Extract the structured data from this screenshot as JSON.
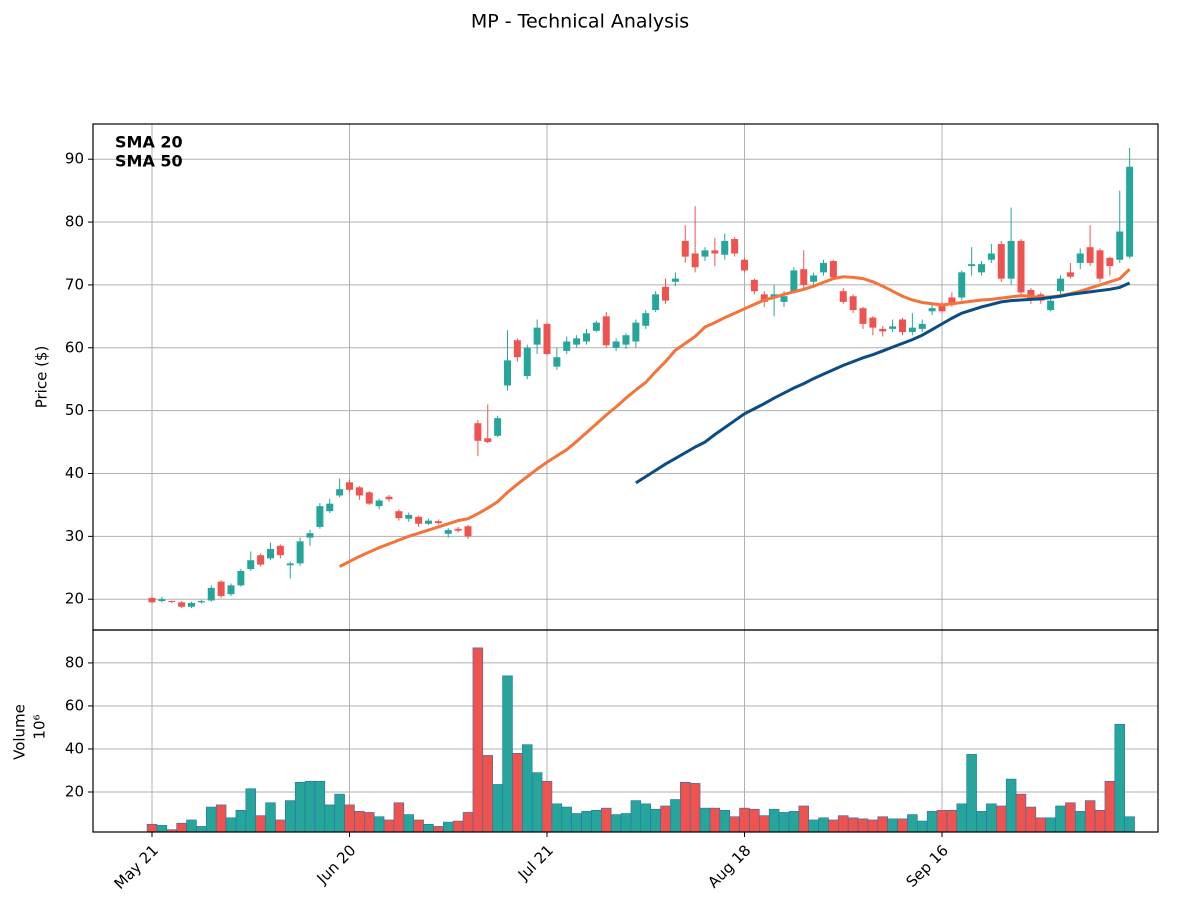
{
  "chart_data": [
    {
      "type": "candlestick",
      "title": "MP - Technical Analysis",
      "ylabel": "Price ($)",
      "up_color": "#26a69a",
      "down_color": "#ef5350",
      "open": [
        20.2,
        19.7,
        19.7,
        19.5,
        18.8,
        19.5,
        19.8,
        22.8,
        20.8,
        22.2,
        24.8,
        27,
        26.5,
        28.5,
        25.4,
        25.7,
        29.8,
        31.5,
        34,
        36.5,
        38.6,
        37.8,
        37,
        34.8,
        36.3,
        34,
        32.8,
        33.1,
        32,
        32.4,
        30.4,
        31.2,
        31.6,
        48,
        45.6,
        46,
        54,
        61.2,
        55.5,
        60.5,
        63.8,
        57,
        59.5,
        60.5,
        61,
        62.7,
        65,
        60,
        60.5,
        61,
        63.5,
        66,
        69.7,
        70.5,
        77,
        75,
        74.5,
        75.5,
        74.8,
        77.3,
        74,
        70.8,
        68.5,
        68,
        67.3,
        69,
        72.5,
        70.5,
        72,
        73.8,
        69,
        68.2,
        66.3,
        64.8,
        63,
        63,
        64.5,
        62.5,
        63,
        65.8,
        67,
        68,
        68,
        73,
        72,
        74,
        76.5,
        71,
        77,
        69.2,
        68.5,
        66,
        69,
        72,
        73.5,
        76,
        75.5,
        74.3,
        74,
        74.5
      ],
      "high": [
        20.5,
        20.4,
        19.8,
        19.7,
        19.6,
        19.9,
        22.2,
        23,
        22.5,
        24.8,
        27.6,
        27.3,
        29,
        28.7,
        26,
        29.8,
        31,
        35.3,
        36,
        39.2,
        39,
        38,
        37.2,
        36,
        36.6,
        34.3,
        33.8,
        33.3,
        32.8,
        32.7,
        31.3,
        31.5,
        31.8,
        48.5,
        51,
        49.2,
        62.8,
        61.5,
        60.5,
        64.5,
        64,
        60,
        61.8,
        62,
        63,
        64.3,
        65.7,
        61.5,
        62.3,
        64.5,
        66,
        69,
        71,
        72,
        79.5,
        82.5,
        76,
        77.5,
        78.2,
        77.6,
        74.3,
        71,
        69,
        70,
        69,
        72.8,
        75.5,
        72,
        74,
        74,
        69.5,
        68.5,
        66.5,
        65,
        63.5,
        64.5,
        64.8,
        65.5,
        64.5,
        66.8,
        67.3,
        68.8,
        72.3,
        76,
        73.8,
        76.5,
        77,
        82.3,
        77.3,
        69.5,
        68.8,
        68,
        71.5,
        73.5,
        75.8,
        79.5,
        75.8,
        74.5,
        85,
        91.8
      ],
      "low": [
        19.3,
        19.5,
        19.4,
        18.6,
        18.6,
        19.3,
        19.6,
        20.2,
        20.5,
        22,
        24.5,
        25.2,
        26.2,
        26.5,
        23.3,
        25.3,
        28.5,
        31.2,
        33.7,
        36.2,
        37,
        35.8,
        35,
        34.3,
        35.5,
        32.5,
        32.3,
        31.5,
        31.8,
        31.9,
        29.8,
        30.6,
        29.6,
        42.8,
        44.8,
        45.8,
        53.2,
        57.8,
        55,
        59,
        58.8,
        56.5,
        59,
        60,
        60.5,
        62.5,
        60,
        59.5,
        59.8,
        60,
        63,
        65.7,
        67,
        69.8,
        73.5,
        72,
        73.8,
        73,
        74,
        74.5,
        72,
        68.5,
        66.5,
        65,
        66.5,
        68.8,
        69.5,
        69.8,
        71.5,
        71,
        67,
        65.5,
        63,
        62,
        61.8,
        62.5,
        62,
        62,
        62.5,
        65.2,
        65.5,
        66.5,
        67.5,
        71.5,
        71.5,
        73.5,
        70.5,
        70,
        68,
        67,
        67,
        65.8,
        68.5,
        71,
        72.5,
        73,
        70.5,
        71.5,
        73.5,
        74.2
      ],
      "close": [
        19.5,
        20,
        19.6,
        18.8,
        19.4,
        19.7,
        21.8,
        20.5,
        22.2,
        24.5,
        26.2,
        25.5,
        28,
        27,
        25.7,
        29.2,
        30.5,
        34.8,
        35.2,
        37.5,
        37.4,
        36.5,
        35.2,
        35.7,
        35.9,
        32.9,
        33.4,
        32,
        32.5,
        32.1,
        31,
        30.9,
        30,
        45.2,
        45,
        48.8,
        58,
        58.5,
        60,
        63.2,
        59,
        58.5,
        61,
        61.5,
        62.3,
        64,
        60.4,
        61,
        62,
        64,
        65.5,
        68.5,
        67.5,
        71,
        74.5,
        72.8,
        75.5,
        75,
        77,
        75,
        72.3,
        69,
        67.3,
        68.5,
        68.2,
        72.3,
        70,
        71.5,
        73.5,
        71.2,
        67.3,
        66,
        63.8,
        63.2,
        62.6,
        63.4,
        62.5,
        63.2,
        63.8,
        66.3,
        65.8,
        66.8,
        72,
        73.3,
        73.3,
        75,
        71,
        77,
        68.8,
        67.8,
        67.5,
        67.5,
        71,
        71.3,
        75,
        73.5,
        71,
        73,
        78.5,
        88.8
      ],
      "series": [
        {
          "name": "SMA 20",
          "color": "#f4733a",
          "values": [
            null,
            null,
            null,
            null,
            null,
            null,
            null,
            null,
            null,
            null,
            null,
            null,
            null,
            null,
            null,
            null,
            null,
            null,
            null,
            25.2,
            26.0,
            26.8,
            27.5,
            28.2,
            28.8,
            29.4,
            30.0,
            30.5,
            31.0,
            31.5,
            32.0,
            32.5,
            32.8,
            33.6,
            34.5,
            35.5,
            37.0,
            38.3,
            39.5,
            40.7,
            41.8,
            42.8,
            43.8,
            45.1,
            46.5,
            47.9,
            49.3,
            50.6,
            52.0,
            53.3,
            54.5,
            56.2,
            57.8,
            59.6,
            60.7,
            61.8,
            63.3,
            64.0,
            64.8,
            65.5,
            66.2,
            66.9,
            67.6,
            68.0,
            68.5,
            68.9,
            69.3,
            69.8,
            70.4,
            71.0,
            71.3,
            71.2,
            71.0,
            70.5,
            69.8,
            69.0,
            68.2,
            67.6,
            67.2,
            67.0,
            66.8,
            67.0,
            67.2,
            67.4,
            67.6,
            67.7,
            67.9,
            68.1,
            68.3,
            68.2,
            68.0,
            68.1,
            68.3,
            68.6,
            69.0,
            69.5,
            70.0,
            70.5,
            71.0,
            72.5
          ]
        },
        {
          "name": "SMA 50",
          "color": "#0a4c86",
          "values": [
            null,
            null,
            null,
            null,
            null,
            null,
            null,
            null,
            null,
            null,
            null,
            null,
            null,
            null,
            null,
            null,
            null,
            null,
            null,
            null,
            null,
            null,
            null,
            null,
            null,
            null,
            null,
            null,
            null,
            null,
            null,
            null,
            null,
            null,
            null,
            null,
            null,
            null,
            null,
            null,
            null,
            null,
            null,
            null,
            null,
            null,
            null,
            null,
            null,
            38.5,
            39.5,
            40.5,
            41.5,
            42.4,
            43.3,
            44.2,
            45.0,
            46.2,
            47.3,
            48.4,
            49.5,
            50.3,
            51.1,
            52.0,
            52.8,
            53.6,
            54.3,
            55.1,
            55.8,
            56.5,
            57.2,
            57.8,
            58.4,
            58.9,
            59.5,
            60.1,
            60.7,
            61.3,
            62.0,
            62.9,
            63.8,
            64.7,
            65.5,
            66.0,
            66.5,
            66.9,
            67.3,
            67.5,
            67.6,
            67.7,
            67.8,
            68.0,
            68.2,
            68.5,
            68.7,
            68.9,
            69.1,
            69.3,
            69.6,
            70.3
          ]
        }
      ],
      "legend": "upper left",
      "grid": true,
      "ylim": [
        15.1,
        95.6
      ],
      "yticks": [
        20,
        30,
        40,
        50,
        60,
        70,
        80,
        90
      ]
    },
    {
      "type": "bar",
      "ylabel": "Volume",
      "offset_label": "10⁶",
      "categories": [
        "May 21",
        null,
        null,
        null,
        null,
        null,
        null,
        null,
        null,
        null,
        null,
        null,
        null,
        null,
        null,
        null,
        null,
        null,
        null,
        null,
        "Jun 20",
        null,
        null,
        null,
        null,
        null,
        null,
        null,
        null,
        null,
        null,
        null,
        null,
        null,
        null,
        null,
        null,
        null,
        null,
        null,
        "Jul 21",
        null,
        null,
        null,
        null,
        null,
        null,
        null,
        null,
        null,
        null,
        null,
        null,
        null,
        null,
        null,
        null,
        null,
        null,
        null,
        "Aug 18",
        null,
        null,
        null,
        null,
        null,
        null,
        null,
        null,
        null,
        null,
        null,
        null,
        null,
        null,
        null,
        null,
        null,
        null,
        null,
        "Sep 16",
        null,
        null,
        null,
        null,
        null,
        null,
        null,
        null,
        null,
        null,
        null,
        null,
        null,
        null,
        null,
        null,
        null,
        null,
        null
      ],
      "values": [
        5,
        4.5,
        2.5,
        5.5,
        7,
        4,
        13,
        14,
        8,
        11.5,
        21.5,
        9,
        15,
        7,
        16,
        24.5,
        25,
        25,
        14,
        19,
        14,
        11,
        10.5,
        8.5,
        7,
        15,
        9.5,
        7,
        5,
        4,
        6,
        6.5,
        10.5,
        87,
        37,
        23.5,
        74,
        38,
        42,
        29,
        25,
        14.5,
        13,
        10,
        11,
        11.5,
        12.5,
        9.5,
        10,
        16,
        14.5,
        12,
        13.5,
        16.5,
        24.5,
        24,
        12.5,
        12.5,
        11.5,
        8.5,
        12.5,
        12,
        9,
        12,
        10.5,
        11,
        13.5,
        7,
        8,
        7,
        9,
        8,
        7.5,
        7,
        8.5,
        7.5,
        7.5,
        9.5,
        6.5,
        11,
        11.5,
        11.5,
        14.5,
        37.5,
        11,
        14.5,
        13.5,
        26,
        19,
        13,
        8,
        8,
        13.5,
        15,
        11,
        16,
        11.5,
        25,
        51.5,
        8.5
      ],
      "grid": true,
      "ylim": [
        1.4,
        95.3
      ],
      "yticks": [
        20,
        40,
        60,
        80
      ]
    }
  ]
}
